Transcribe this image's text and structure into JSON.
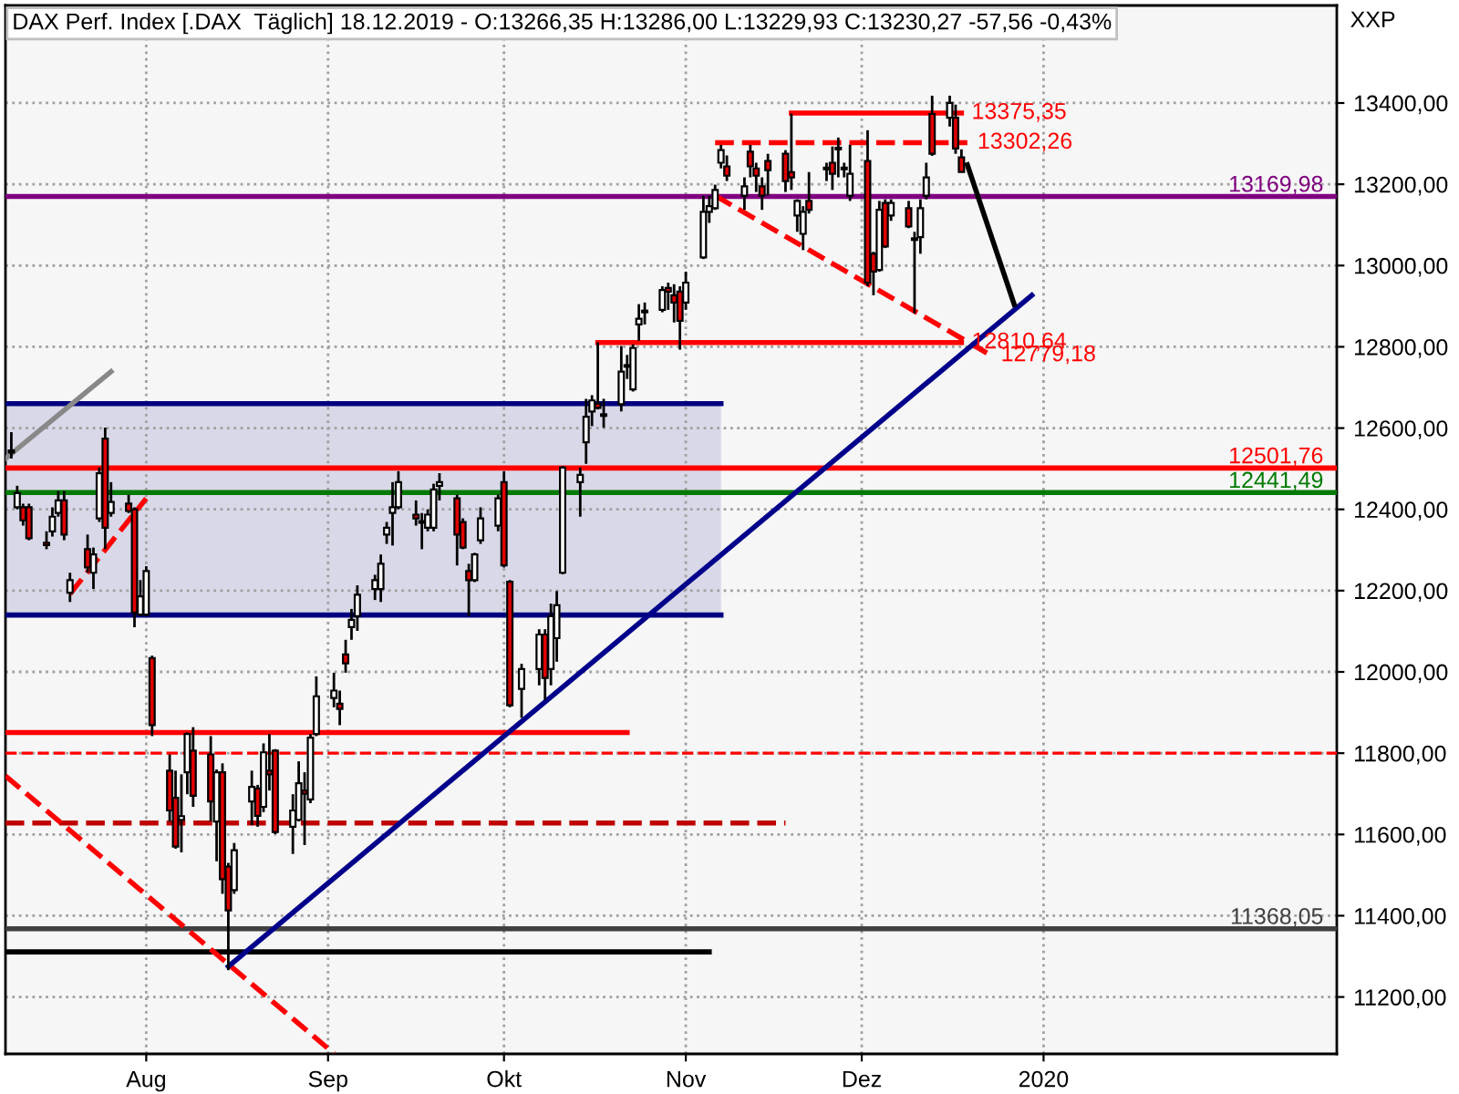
{
  "chart_data": {
    "type": "candlestick",
    "title": "DAX Perf. Index [.DAX  Täglich] 18.12.2019 - O:13266,35 H:13286,00 L:13229,93 C:13230,27 -57,56 -0,43%",
    "ylabel": "XXP",
    "x": [
      "2019-07-09",
      "2019-07-10",
      "2019-07-11",
      "2019-07-12",
      "2019-07-15",
      "2019-07-16",
      "2019-07-17",
      "2019-07-18",
      "2019-07-19",
      "2019-07-22",
      "2019-07-23",
      "2019-07-24",
      "2019-07-25",
      "2019-07-26",
      "2019-07-29",
      "2019-07-30",
      "2019-07-31",
      "2019-08-01",
      "2019-08-02",
      "2019-08-05",
      "2019-08-06",
      "2019-08-07",
      "2019-08-08",
      "2019-08-09",
      "2019-08-12",
      "2019-08-13",
      "2019-08-14",
      "2019-08-15",
      "2019-08-16",
      "2019-08-19",
      "2019-08-20",
      "2019-08-21",
      "2019-08-22",
      "2019-08-23",
      "2019-08-26",
      "2019-08-27",
      "2019-08-28",
      "2019-08-29",
      "2019-08-30",
      "2019-09-02",
      "2019-09-03",
      "2019-09-04",
      "2019-09-05",
      "2019-09-06",
      "2019-09-09",
      "2019-09-10",
      "2019-09-11",
      "2019-09-12",
      "2019-09-13",
      "2019-09-16",
      "2019-09-17",
      "2019-09-18",
      "2019-09-19",
      "2019-09-20",
      "2019-09-23",
      "2019-09-24",
      "2019-09-25",
      "2019-09-26",
      "2019-09-27",
      "2019-09-30",
      "2019-10-01",
      "2019-10-02",
      "2019-10-04",
      "2019-10-07",
      "2019-10-08",
      "2019-10-09",
      "2019-10-10",
      "2019-10-11",
      "2019-10-14",
      "2019-10-15",
      "2019-10-16",
      "2019-10-17",
      "2019-10-18",
      "2019-10-21",
      "2019-10-22",
      "2019-10-23",
      "2019-10-24",
      "2019-10-25",
      "2019-10-28",
      "2019-10-29",
      "2019-10-30",
      "2019-10-31",
      "2019-11-01",
      "2019-11-04",
      "2019-11-05",
      "2019-11-06",
      "2019-11-07",
      "2019-11-08",
      "2019-11-11",
      "2019-11-12",
      "2019-11-13",
      "2019-11-14",
      "2019-11-15",
      "2019-11-18",
      "2019-11-19",
      "2019-11-20",
      "2019-11-21",
      "2019-11-22",
      "2019-11-25",
      "2019-11-26",
      "2019-11-27",
      "2019-11-28",
      "2019-11-29",
      "2019-12-02",
      "2019-12-03",
      "2019-12-04",
      "2019-12-05",
      "2019-12-06",
      "2019-12-09",
      "2019-12-10",
      "2019-12-11",
      "2019-12-12",
      "2019-12-13",
      "2019-12-16",
      "2019-12-17",
      "2019-12-18"
    ],
    "ohlc": [
      [
        12540,
        12590,
        12525,
        12545
      ],
      [
        12405,
        12458,
        12400,
        12440
      ],
      [
        12405,
        12414,
        12360,
        12373
      ],
      [
        12405,
        12414,
        12324,
        12329
      ],
      [
        12318,
        12346,
        12302,
        12312
      ],
      [
        12346,
        12405,
        12333,
        12382
      ],
      [
        12391,
        12445,
        12382,
        12422
      ],
      [
        12422,
        12445,
        12324,
        12338
      ],
      [
        12195,
        12244,
        12172,
        12226
      ],
      [
        12302,
        12338,
        12244,
        12257
      ],
      [
        12244,
        12306,
        12204,
        12289
      ],
      [
        12378,
        12503,
        12369,
        12489
      ],
      [
        12574,
        12601,
        12302,
        12355
      ],
      [
        12391,
        12467,
        12382,
        12418
      ],
      [
        12414,
        12436,
        12391,
        12396
      ],
      [
        12400,
        12405,
        12110,
        12146
      ],
      [
        12141,
        12226,
        12137,
        12186
      ],
      [
        12141,
        12260,
        12137,
        12248
      ],
      [
        12034,
        12040,
        11842,
        11869
      ],
      [
        11757,
        11797,
        11632,
        11659
      ],
      [
        11690,
        11757,
        11565,
        11570
      ],
      [
        11636,
        11748,
        11556,
        11645
      ],
      [
        11753,
        11851,
        11699,
        11847
      ],
      [
        11806,
        11864,
        11668,
        11695
      ],
      [
        11797,
        11842,
        11632,
        11681
      ],
      [
        11632,
        11760,
        11534,
        11753
      ],
      [
        11753,
        11775,
        11454,
        11490
      ],
      [
        11521,
        11530,
        11266,
        11413
      ],
      [
        11463,
        11579,
        11454,
        11561
      ],
      [
        11681,
        11757,
        11623,
        11717
      ],
      [
        11713,
        11722,
        11619,
        11646
      ],
      [
        11668,
        11824,
        11655,
        11802
      ],
      [
        11757,
        11847,
        11708,
        11748
      ],
      [
        11806,
        11810,
        11601,
        11606
      ],
      [
        11619,
        11699,
        11552,
        11659
      ],
      [
        11636,
        11780,
        11632,
        11726
      ],
      [
        11708,
        11753,
        11574,
        11700
      ],
      [
        11686,
        11847,
        11677,
        11838
      ],
      [
        11847,
        11989,
        11842,
        11940
      ],
      [
        11936,
        11998,
        11913,
        11954
      ],
      [
        11922,
        11954,
        11869,
        11909
      ],
      [
        12043,
        12079,
        11998,
        12021
      ],
      [
        12110,
        12155,
        12079,
        12128
      ],
      [
        12137,
        12213,
        12101,
        12190
      ],
      [
        12204,
        12239,
        12177,
        12226
      ],
      [
        12204,
        12289,
        12172,
        12266
      ],
      [
        12338,
        12369,
        12315,
        12355
      ],
      [
        12391,
        12467,
        12311,
        12405
      ],
      [
        12405,
        12494,
        12400,
        12467
      ],
      [
        12387,
        12422,
        12360,
        12378
      ],
      [
        12367,
        12391,
        12302,
        12371
      ],
      [
        12355,
        12400,
        12346,
        12387
      ],
      [
        12355,
        12463,
        12346,
        12449
      ],
      [
        12458,
        12489,
        12422,
        12467
      ],
      [
        12427,
        12436,
        12262,
        12338
      ],
      [
        12369,
        12378,
        12302,
        12306
      ],
      [
        12248,
        12266,
        12137,
        12226
      ],
      [
        12226,
        12293,
        12221,
        12289
      ],
      [
        12324,
        12405,
        12315,
        12378
      ],
      [
        12360,
        12436,
        12346,
        12427
      ],
      [
        12467,
        12494,
        12257,
        12262
      ],
      [
        12222,
        12226,
        11913,
        11918
      ],
      [
        11958,
        12020,
        11887,
        12007
      ],
      [
        12007,
        12105,
        11967,
        12092
      ],
      [
        12092,
        12105,
        11931,
        11985
      ],
      [
        12007,
        12168,
        11967,
        12137
      ],
      [
        12083,
        12199,
        12025,
        12164
      ],
      [
        12244,
        12507,
        12240,
        12503
      ],
      [
        12467,
        12503,
        12382,
        12485
      ],
      [
        12565,
        12672,
        12512,
        12628
      ],
      [
        12641,
        12681,
        12605,
        12668
      ],
      [
        12660,
        12811,
        12646,
        12650
      ],
      [
        12630,
        12672,
        12601,
        12634
      ],
      [
        12659,
        12802,
        12641,
        12739
      ],
      [
        12755,
        12780,
        12721,
        12751
      ],
      [
        12695,
        12806,
        12690,
        12797
      ],
      [
        12855,
        12905,
        12815,
        12869
      ],
      [
        12885,
        12909,
        12855,
        12889
      ],
      [
        12891,
        12949,
        12885,
        12940
      ],
      [
        12945,
        12958,
        12891,
        12936
      ],
      [
        12927,
        12954,
        12860,
        12909
      ],
      [
        12936,
        12949,
        12793,
        12864
      ],
      [
        12909,
        12985,
        12891,
        12958
      ],
      [
        13020,
        13172,
        13016,
        13132
      ],
      [
        13132,
        13172,
        13105,
        13146
      ],
      [
        13141,
        13199,
        13137,
        13186
      ],
      [
        13253,
        13297,
        13239,
        13284
      ],
      [
        13244,
        13271,
        13208,
        13221
      ],
      [
        13172,
        13217,
        13137,
        13195
      ],
      [
        13280,
        13297,
        13217,
        13244
      ],
      [
        13239,
        13253,
        13181,
        13221
      ],
      [
        13195,
        13217,
        13137,
        13172
      ],
      [
        13257,
        13275,
        13172,
        13235
      ],
      [
        13275,
        13284,
        13181,
        13208
      ],
      [
        13230,
        13374,
        13186,
        13217
      ],
      [
        13123,
        13163,
        13083,
        13159
      ],
      [
        13078,
        13146,
        13038,
        13132
      ],
      [
        13159,
        13230,
        13128,
        13137
      ],
      [
        13237,
        13253,
        13208,
        13241
      ],
      [
        13253,
        13293,
        13186,
        13226
      ],
      [
        13286,
        13315,
        13217,
        13290
      ],
      [
        13241,
        13253,
        13217,
        13237
      ],
      [
        13172,
        13297,
        13159,
        13226
      ],
      [
        13257,
        13333,
        12949,
        12958
      ],
      [
        13029,
        13034,
        12927,
        12985
      ],
      [
        12989,
        13159,
        12985,
        13137
      ],
      [
        13154,
        13163,
        13043,
        13047
      ],
      [
        13123,
        13163,
        13110,
        13154
      ],
      [
        13141,
        13159,
        13092,
        13096
      ],
      [
        13067,
        13083,
        12882,
        13063
      ],
      [
        13070,
        13163,
        13029,
        13141
      ],
      [
        13172,
        13253,
        13163,
        13217
      ],
      [
        13373,
        13418,
        13270,
        13275
      ],
      [
        13364,
        13418,
        13342,
        13400
      ],
      [
        13364,
        13396,
        13275,
        13288
      ],
      [
        13266.35,
        13286.0,
        13229.93,
        13230.27
      ]
    ],
    "colors": [
      "#ffffff",
      "#ffffff",
      "#e00000",
      "#e00000",
      "#e00000",
      "#ffffff",
      "#ffffff",
      "#e00000",
      "#ffffff",
      "#e00000",
      "#ffffff",
      "#ffffff",
      "#e00000",
      "#ffffff",
      "#e00000",
      "#e00000",
      "#ffffff",
      "#ffffff",
      "#e00000",
      "#e00000",
      "#e00000",
      "#ffffff",
      "#ffffff",
      "#e00000",
      "#e00000",
      "#ffffff",
      "#e00000",
      "#e00000",
      "#ffffff",
      "#ffffff",
      "#e00000",
      "#ffffff",
      "#e00000",
      "#e00000",
      "#ffffff",
      "#ffffff",
      "#e00000",
      "#ffffff",
      "#ffffff",
      "#ffffff",
      "#e00000",
      "#e00000",
      "#ffffff",
      "#ffffff",
      "#ffffff",
      "#ffffff",
      "#ffffff",
      "#ffffff",
      "#ffffff",
      "#e00000",
      "#ffffff",
      "#ffffff",
      "#ffffff",
      "#ffffff",
      "#e00000",
      "#e00000",
      "#e00000",
      "#ffffff",
      "#ffffff",
      "#ffffff",
      "#e00000",
      "#e00000",
      "#ffffff",
      "#ffffff",
      "#e00000",
      "#ffffff",
      "#ffffff",
      "#ffffff",
      "#ffffff",
      "#ffffff",
      "#ffffff",
      "#e00000",
      "#ffffff",
      "#ffffff",
      "#e00000",
      "#ffffff",
      "#ffffff",
      "#ffffff",
      "#ffffff",
      "#e00000",
      "#e00000",
      "#e00000",
      "#ffffff",
      "#ffffff",
      "#ffffff",
      "#ffffff",
      "#ffffff",
      "#e00000",
      "#ffffff",
      "#e00000",
      "#e00000",
      "#e00000",
      "#e00000",
      "#e00000",
      "#e00000",
      "#ffffff",
      "#ffffff",
      "#e00000",
      "#ffffff",
      "#e00000",
      "#ffffff",
      "#e00000",
      "#ffffff",
      "#e00000",
      "#e00000",
      "#ffffff",
      "#e00000",
      "#ffffff",
      "#e00000",
      "#e00000",
      "#ffffff",
      "#ffffff",
      "#e00000",
      "#ffffff",
      "#e00000",
      "#e00000"
    ],
    "series": [
      {
        "type": "line",
        "color": "#000080",
        "x": [
          "2019-07-08",
          "2019-11-07"
        ],
        "values": [
          12660,
          12660
        ],
        "lower": [
          12140,
          12140
        ],
        "upper": [
          12660,
          12660
        ]
      },
      {
        "type": "line",
        "color": "#000080",
        "x": [
          "2019-07-08",
          "2019-11-07"
        ],
        "values": [
          12140,
          12140
        ]
      },
      {
        "type": "line",
        "color": "#000000",
        "x": [
          "2019-07-08",
          "2019-11-05"
        ],
        "values": [
          11311,
          11311
        ]
      },
      {
        "type": "line",
        "color": "#ff0000",
        "x": [
          "2019-07-08",
          "2019-10-22"
        ],
        "values": [
          11851,
          11851
        ]
      },
      {
        "type": "line",
        "color": "#c00000",
        "line_style": "dashed",
        "x": [
          "2019-07-08",
          "2019-11-18"
        ],
        "values": [
          11628,
          11628
        ]
      },
      {
        "type": "line",
        "name": "12810,64",
        "color": "#ff0000",
        "x": [
          "2019-10-17",
          "2019-12-18"
        ],
        "values": [
          12810.64,
          12810.64
        ]
      },
      {
        "type": "line",
        "name": "13375,35",
        "color": "#ff0000",
        "x": [
          "2019-11-19",
          "2019-12-18"
        ],
        "values": [
          13375.35,
          13375.35
        ]
      },
      {
        "type": "line",
        "name": "13302,26",
        "color": "#ff0000",
        "line_style": "dashed",
        "x": [
          "2019-11-06",
          "2019-12-19"
        ],
        "values": [
          13302.26,
          13302.26
        ]
      },
      {
        "type": "line",
        "name": "12779,18",
        "color": "#ff0000",
        "line_style": "dashed",
        "x": [
          "2019-11-06",
          "2019-12-23"
        ],
        "values": [
          13172,
          12779.18
        ]
      },
      {
        "type": "line",
        "color": "#ff0000",
        "line_style": "dashed",
        "x": [
          "2019-07-19",
          "2019-08-01"
        ],
        "values": [
          12192,
          12427
        ]
      },
      {
        "type": "line",
        "color": "#ff0000",
        "line_style": "dashed",
        "x": [
          "2019-07-08",
          "2019-09-02"
        ],
        "values": [
          11744,
          11061
        ]
      },
      {
        "type": "line",
        "color": "#888888",
        "x": [
          "2019-07-08",
          "2019-07-26"
        ],
        "values": [
          12525,
          12739
        ]
      },
      {
        "type": "line",
        "color": "#00008b",
        "x": [
          "2019-08-15",
          "2019-12-30"
        ],
        "values": [
          11275,
          12927
        ]
      },
      {
        "type": "line",
        "color": "#000000",
        "x": [
          "2019-12-19",
          "2019-12-27"
        ],
        "values": [
          13248,
          12904
        ]
      }
    ],
    "ref_lines": [
      {
        "axis": "y",
        "value": 13169.98,
        "label": "13169,98",
        "color": "#800080"
      },
      {
        "axis": "y",
        "value": 12441.49,
        "label": "12441,49",
        "color": "#007a00"
      },
      {
        "axis": "y",
        "value": 12501.76,
        "label": "12501,76",
        "color": "#ff0000"
      },
      {
        "axis": "y",
        "value": 11368.05,
        "label": "11368,05",
        "color": "#404040"
      },
      {
        "axis": "y",
        "value": 11800,
        "color": "#ff0000",
        "line_style": "dashed"
      }
    ],
    "xlim": [
      "2019-07-08",
      "2020-02-20"
    ],
    "xticks": [
      {
        "value": "2019-08-01",
        "label": "Aug"
      },
      {
        "value": "2019-09-01",
        "label": "Sep"
      },
      {
        "value": "2019-10-01",
        "label": "Okt"
      },
      {
        "value": "2019-11-01",
        "label": "Nov"
      },
      {
        "value": "2019-12-01",
        "label": "Dez"
      },
      {
        "value": "2020-01-01",
        "label": "2020"
      }
    ],
    "ylim": [
      11060,
      13640
    ],
    "yticks": [
      {
        "value": 11200,
        "label": "11200,00"
      },
      {
        "value": 11400,
        "label": "11400,00"
      },
      {
        "value": 11600,
        "label": "11600,00"
      },
      {
        "value": 11800,
        "label": "11800,00"
      },
      {
        "value": 12000,
        "label": "12000,00"
      },
      {
        "value": 12200,
        "label": "12200,00"
      },
      {
        "value": 12400,
        "label": "12400,00"
      },
      {
        "value": 12600,
        "label": "12600,00"
      },
      {
        "value": 12800,
        "label": "12800,00"
      },
      {
        "value": 13000,
        "label": "13000,00"
      },
      {
        "value": 13200,
        "label": "13200,00"
      },
      {
        "value": 13400,
        "label": "13400,00"
      }
    ],
    "grid": true
  }
}
